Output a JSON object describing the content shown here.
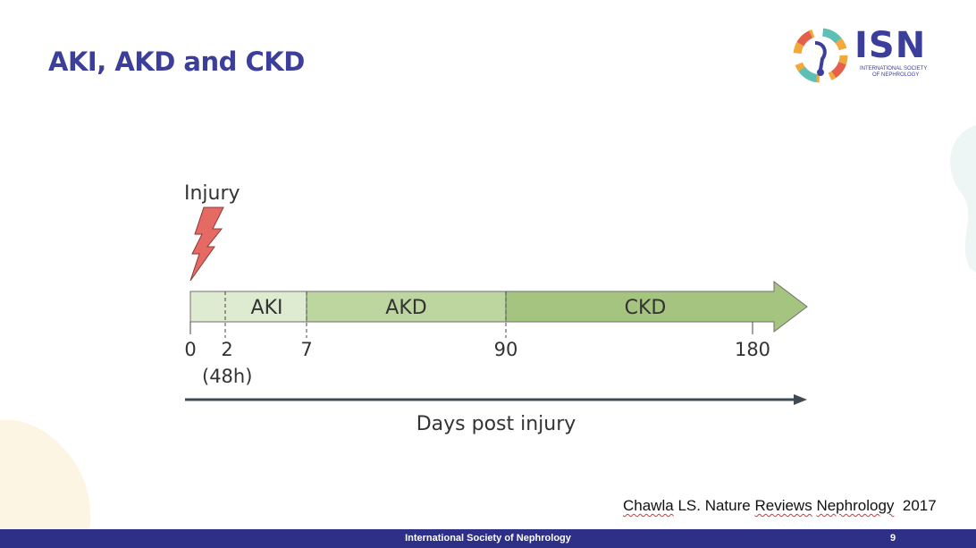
{
  "slide": {
    "title": "AKI, AKD and CKD"
  },
  "logo": {
    "name": "ISN",
    "subtitle_line1": "International Society",
    "subtitle_line2": "of Nephrology"
  },
  "diagram": {
    "injury_label": "Injury",
    "phases": [
      {
        "label": "AKI",
        "start_day": 0,
        "end_day": 7
      },
      {
        "label": "AKD",
        "start_day": 7,
        "end_day": 90
      },
      {
        "label": "CKD",
        "start_day": 90,
        "end_day": 180
      }
    ],
    "ticks": [
      {
        "label": "0",
        "day": 0
      },
      {
        "label": "2",
        "day": 2
      },
      {
        "label": "7",
        "day": 7
      },
      {
        "label": "90",
        "day": 90
      },
      {
        "label": "180",
        "day": 180
      }
    ],
    "tick_note": "(48h)",
    "axis_label": "Days post injury",
    "colors": {
      "aki": "#deebd0",
      "akd": "#bdd6a0",
      "ckd": "#a5c47f",
      "outline": "#6f6f6f",
      "bolt": "#e46a63",
      "axis": "#3f4a52"
    }
  },
  "citation": {
    "author": "Chawla",
    "initials": "LS.",
    "journal_word1": "Nature",
    "journal_word2": "Reviews",
    "journal_word3": "Nephrology",
    "year": "2017"
  },
  "footer": {
    "text": "International Society of Nephrology",
    "page_number": "9"
  }
}
